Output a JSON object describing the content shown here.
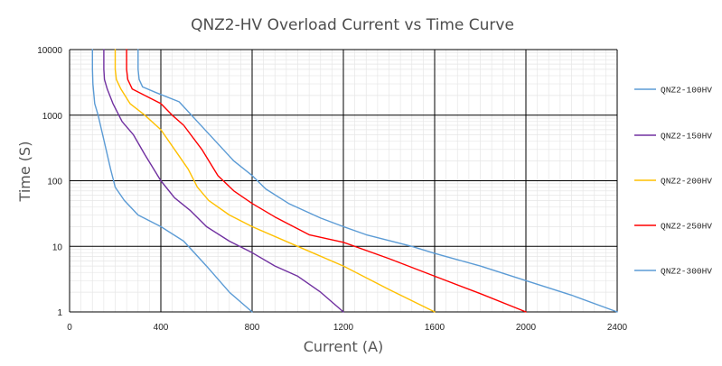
{
  "chart_data": {
    "type": "line",
    "title": "QNZ2-HV Overload Current  vs  Time Curve",
    "xlabel": "Current (A)",
    "ylabel": "Time (S)",
    "xlim": [
      0,
      2400
    ],
    "ylim": [
      1,
      10000
    ],
    "yscale": "log",
    "grid": true,
    "legend_position": "right",
    "x_ticks": [
      0,
      400,
      800,
      1200,
      1600,
      2000,
      2400
    ],
    "x_tick_labels": [
      "0",
      "400",
      "800",
      "1200",
      "1600",
      "2000",
      "2400"
    ],
    "y_ticks": [
      1,
      10,
      100,
      1000,
      10000
    ],
    "y_tick_labels": [
      "1",
      "10",
      "100",
      "1000",
      "10000"
    ],
    "series": [
      {
        "name": "QNZ2-100HV",
        "color": "#5b9bd5",
        "x": [
          100,
          100,
          102,
          110,
          125,
          140,
          160,
          180,
          200,
          240,
          300,
          400,
          500,
          600,
          700,
          800
        ],
        "y": [
          10000,
          5000,
          3000,
          1500,
          1000,
          600,
          300,
          150,
          80,
          50,
          30,
          20,
          12,
          5,
          2,
          1
        ]
      },
      {
        "name": "QNZ2-150HV",
        "color": "#7030a0",
        "x": [
          150,
          150,
          153,
          165,
          190,
          230,
          280,
          330,
          400,
          460,
          530,
          600,
          700,
          800,
          900,
          1000,
          1100,
          1200
        ],
        "y": [
          10000,
          5000,
          3500,
          2500,
          1500,
          800,
          500,
          250,
          100,
          55,
          35,
          20,
          12,
          8,
          5,
          3.5,
          2,
          1
        ]
      },
      {
        "name": "QNZ2-200HV",
        "color": "#ffc000",
        "x": [
          200,
          200,
          205,
          225,
          265,
          330,
          400,
          460,
          520,
          560,
          610,
          700,
          800,
          1000,
          1200,
          1400,
          1600
        ],
        "y": [
          10000,
          5000,
          3500,
          2500,
          1500,
          1000,
          600,
          300,
          150,
          80,
          50,
          30,
          20,
          10,
          5,
          2.2,
          1
        ]
      },
      {
        "name": "QNZ2-250HV",
        "color": "#ff0000",
        "x": [
          250,
          250,
          255,
          275,
          330,
          400,
          450,
          500,
          580,
          650,
          720,
          800,
          900,
          1050,
          1200,
          1400,
          1600,
          1800,
          2000
        ],
        "y": [
          10000,
          5000,
          3500,
          2500,
          2000,
          1500,
          1000,
          700,
          300,
          120,
          70,
          45,
          28,
          15,
          11.5,
          6.5,
          3.5,
          1.9,
          1
        ]
      },
      {
        "name": "QNZ2-300HV",
        "color": "#5b9bd5",
        "x": [
          300,
          300,
          305,
          320,
          380,
          480,
          560,
          640,
          720,
          800,
          860,
          960,
          1100,
          1200,
          1300,
          1500,
          1600,
          1800,
          2000,
          2200,
          2400
        ],
        "y": [
          10000,
          5000,
          3500,
          2700,
          2200,
          1600,
          800,
          400,
          200,
          120,
          75,
          45,
          27,
          20,
          15,
          10,
          7.8,
          5,
          3,
          1.8,
          1
        ]
      }
    ]
  }
}
